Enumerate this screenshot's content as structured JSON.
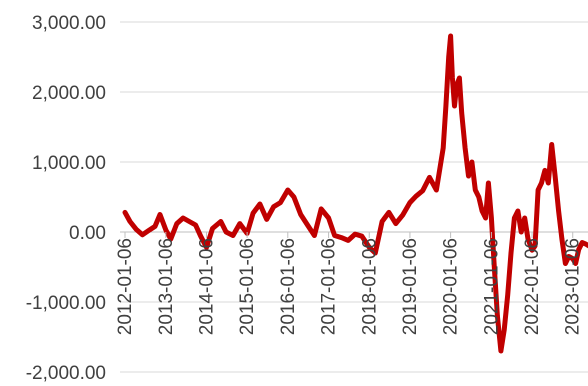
{
  "chart_data": {
    "type": "line",
    "title": "",
    "xlabel": "",
    "ylabel": "",
    "ylim": [
      -2000,
      3000
    ],
    "xlim": [
      "2012-01-06",
      "2023-06-30"
    ],
    "grid": true,
    "legend": "none",
    "y_tick_labels": [
      "3,000.00",
      "2,000.00",
      "1,000.00",
      "0.00",
      "-1,000.00",
      "-2,000.00"
    ],
    "y_tick_values": [
      3000,
      2000,
      1000,
      0,
      -1000,
      -2000
    ],
    "x_tick_labels": [
      "2012-01-06",
      "2013-01-06",
      "2014-01-06",
      "2015-01-06",
      "2016-01-06",
      "2017-01-06",
      "2018-01-06",
      "2019-01-06",
      "2020-01-06",
      "2021-01-06",
      "2022-01-06",
      "2023-01-06"
    ],
    "series": [
      {
        "color": "#c00000",
        "x": [
          "2012-01-06",
          "2012-02-20",
          "2012-04-15",
          "2012-06-10",
          "2012-08-05",
          "2012-10-01",
          "2012-11-15",
          "2013-01-06",
          "2013-02-20",
          "2013-04-15",
          "2013-06-10",
          "2013-08-05",
          "2013-10-01",
          "2013-11-15",
          "2014-01-06",
          "2014-03-01",
          "2014-05-15",
          "2014-07-01",
          "2014-09-01",
          "2014-11-01",
          "2015-01-06",
          "2015-03-01",
          "2015-05-01",
          "2015-07-01",
          "2015-09-01",
          "2015-11-01",
          "2016-01-06",
          "2016-03-01",
          "2016-05-01",
          "2016-07-01",
          "2016-09-01",
          "2016-11-01",
          "2017-01-06",
          "2017-03-01",
          "2017-05-01",
          "2017-07-01",
          "2017-09-01",
          "2017-11-01",
          "2018-01-06",
          "2018-03-01",
          "2018-05-01",
          "2018-07-01",
          "2018-09-01",
          "2018-11-01",
          "2019-01-06",
          "2019-03-01",
          "2019-05-01",
          "2019-07-01",
          "2019-09-01",
          "2019-11-01",
          "2019-11-25",
          "2019-12-20",
          "2020-01-06",
          "2020-01-22",
          "2020-02-10",
          "2020-03-01",
          "2020-03-25",
          "2020-04-15",
          "2020-05-15",
          "2020-06-15",
          "2020-07-15",
          "2020-08-15",
          "2020-09-15",
          "2020-10-15",
          "2020-11-15",
          "2020-12-10",
          "2021-01-06",
          "2021-02-01",
          "2021-03-01",
          "2021-04-01",
          "2021-05-01",
          "2021-06-01",
          "2021-07-01",
          "2021-08-01",
          "2021-09-01",
          "2021-10-01",
          "2021-11-01",
          "2021-12-01",
          "2022-01-06",
          "2022-02-01",
          "2022-03-01",
          "2022-04-01",
          "2022-05-01",
          "2022-06-01",
          "2022-07-01",
          "2022-08-01",
          "2022-09-01",
          "2022-10-01",
          "2022-11-01",
          "2022-12-01",
          "2023-01-06",
          "2023-02-01",
          "2023-03-01",
          "2023-04-01",
          "2023-05-01",
          "2023-06-01",
          "2023-06-30"
        ],
        "values": [
          280,
          150,
          40,
          -40,
          20,
          80,
          250,
          30,
          -100,
          120,
          200,
          150,
          100,
          -60,
          -220,
          50,
          150,
          0,
          -50,
          120,
          -20,
          270,
          400,
          180,
          360,
          420,
          600,
          500,
          250,
          100,
          -50,
          330,
          200,
          -50,
          -80,
          -120,
          -30,
          -60,
          -220,
          -300,
          150,
          280,
          120,
          240,
          420,
          510,
          590,
          780,
          600,
          1200,
          1800,
          2500,
          2800,
          2200,
          1800,
          2100,
          2200,
          1700,
          1200,
          800,
          1000,
          600,
          500,
          300,
          200,
          700,
          200,
          -500,
          -1200,
          -1700,
          -1400,
          -900,
          -300,
          200,
          300,
          0,
          200,
          -100,
          -260,
          -200,
          600,
          700,
          880,
          700,
          1250,
          800,
          300,
          -100,
          -450,
          -350,
          -380,
          -450,
          -250,
          -150,
          -170,
          -200,
          -160
        ]
      }
    ]
  }
}
